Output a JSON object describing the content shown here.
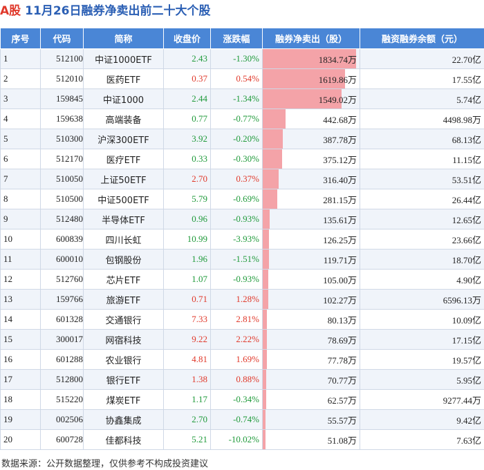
{
  "title": {
    "mark": "A股",
    "text": "11月26日融券净卖出前二十大个股"
  },
  "headers": [
    "序号",
    "代码",
    "简称",
    "收盘价",
    "涨跌幅",
    "融券净卖出（股）",
    "融资融券余额（元）"
  ],
  "footer": "数据来源：公开数据整理，仅供参考不构成投资建议",
  "chart_data": {
    "type": "table",
    "title": "11月26日融券净卖出前二十大个股",
    "columns": [
      "序号",
      "代码",
      "简称",
      "收盘价",
      "涨跌幅",
      "融券净卖出（股）",
      "融资融券余额（元）"
    ],
    "rows": [
      {
        "seq": "1",
        "code": "512100",
        "name": "中证1000ETF",
        "close": "2.43",
        "change": "-1.30%",
        "net_sell": "1834.74万",
        "net_sell_value": 1834.74,
        "balance": "22.70亿"
      },
      {
        "seq": "2",
        "code": "512010",
        "name": "医药ETF",
        "close": "0.37",
        "change": "0.54%",
        "net_sell": "1619.86万",
        "net_sell_value": 1619.86,
        "balance": "17.55亿"
      },
      {
        "seq": "3",
        "code": "159845",
        "name": "中证1000",
        "close": "2.44",
        "change": "-1.34%",
        "net_sell": "1549.02万",
        "net_sell_value": 1549.02,
        "balance": "5.74亿"
      },
      {
        "seq": "4",
        "code": "159638",
        "name": "高端装备",
        "close": "0.77",
        "change": "-0.77%",
        "net_sell": "442.68万",
        "net_sell_value": 442.68,
        "balance": "4498.98万"
      },
      {
        "seq": "5",
        "code": "510300",
        "name": "沪深300ETF",
        "close": "3.92",
        "change": "-0.20%",
        "net_sell": "387.78万",
        "net_sell_value": 387.78,
        "balance": "68.13亿"
      },
      {
        "seq": "6",
        "code": "512170",
        "name": "医疗ETF",
        "close": "0.33",
        "change": "-0.30%",
        "net_sell": "375.12万",
        "net_sell_value": 375.12,
        "balance": "11.15亿"
      },
      {
        "seq": "7",
        "code": "510050",
        "name": "上证50ETF",
        "close": "2.70",
        "change": "0.37%",
        "net_sell": "316.40万",
        "net_sell_value": 316.4,
        "balance": "53.51亿"
      },
      {
        "seq": "8",
        "code": "510500",
        "name": "中证500ETF",
        "close": "5.79",
        "change": "-0.69%",
        "net_sell": "281.15万",
        "net_sell_value": 281.15,
        "balance": "26.44亿"
      },
      {
        "seq": "9",
        "code": "512480",
        "name": "半导体ETF",
        "close": "0.96",
        "change": "-0.93%",
        "net_sell": "135.61万",
        "net_sell_value": 135.61,
        "balance": "12.65亿"
      },
      {
        "seq": "10",
        "code": "600839",
        "name": "四川长虹",
        "close": "10.99",
        "change": "-3.93%",
        "net_sell": "126.25万",
        "net_sell_value": 126.25,
        "balance": "23.66亿"
      },
      {
        "seq": "11",
        "code": "600010",
        "name": "包钢股份",
        "close": "1.96",
        "change": "-1.51%",
        "net_sell": "119.71万",
        "net_sell_value": 119.71,
        "balance": "18.70亿"
      },
      {
        "seq": "12",
        "code": "512760",
        "name": "芯片ETF",
        "close": "1.07",
        "change": "-0.93%",
        "net_sell": "105.00万",
        "net_sell_value": 105.0,
        "balance": "4.90亿"
      },
      {
        "seq": "13",
        "code": "159766",
        "name": "旅游ETF",
        "close": "0.71",
        "change": "1.28%",
        "net_sell": "102.27万",
        "net_sell_value": 102.27,
        "balance": "6596.13万"
      },
      {
        "seq": "14",
        "code": "601328",
        "name": "交通银行",
        "close": "7.33",
        "change": "2.81%",
        "net_sell": "80.13万",
        "net_sell_value": 80.13,
        "balance": "10.09亿"
      },
      {
        "seq": "15",
        "code": "300017",
        "name": "网宿科技",
        "close": "9.22",
        "change": "2.22%",
        "net_sell": "78.69万",
        "net_sell_value": 78.69,
        "balance": "17.15亿"
      },
      {
        "seq": "16",
        "code": "601288",
        "name": "农业银行",
        "close": "4.81",
        "change": "1.69%",
        "net_sell": "77.78万",
        "net_sell_value": 77.78,
        "balance": "19.57亿"
      },
      {
        "seq": "17",
        "code": "512800",
        "name": "银行ETF",
        "close": "1.38",
        "change": "0.88%",
        "net_sell": "70.77万",
        "net_sell_value": 70.77,
        "balance": "5.95亿"
      },
      {
        "seq": "18",
        "code": "515220",
        "name": "煤炭ETF",
        "close": "1.17",
        "change": "-0.34%",
        "net_sell": "62.57万",
        "net_sell_value": 62.57,
        "balance": "9277.44万"
      },
      {
        "seq": "19",
        "code": "002506",
        "name": "协鑫集成",
        "close": "2.70",
        "change": "-0.74%",
        "net_sell": "55.57万",
        "net_sell_value": 55.57,
        "balance": "9.42亿"
      },
      {
        "seq": "20",
        "code": "600728",
        "name": "佳都科技",
        "close": "5.21",
        "change": "-10.02%",
        "net_sell": "51.08万",
        "net_sell_value": 51.08,
        "balance": "7.63亿"
      }
    ]
  },
  "colors": {
    "header_bg": "#4a86d6",
    "bar": "#f4a3a8",
    "up": "#e0392b",
    "down": "#1f9a3a",
    "title": "#2b5fb4"
  }
}
